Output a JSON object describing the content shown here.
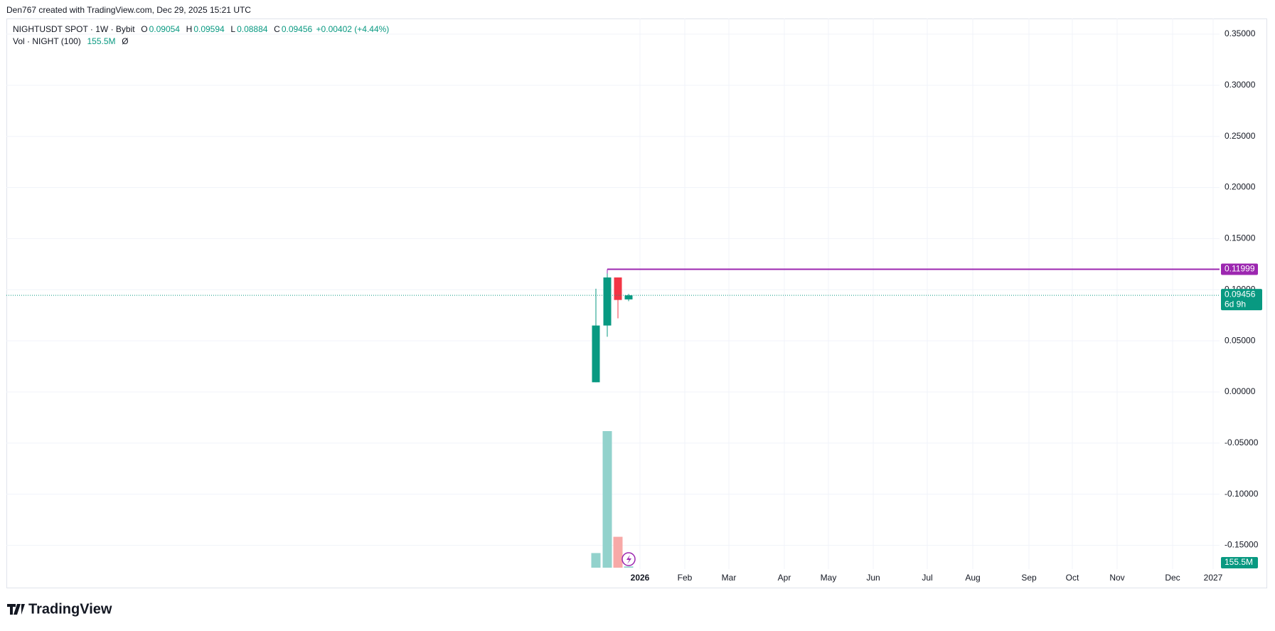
{
  "chart_data": {
    "type": "candlestick",
    "attribution": "Den767 created with TradingView.com, Dec 29, 2025 15:21 UTC",
    "symbol": "NIGHTUSDT SPOT · 1W · Bybit",
    "legend_labels": [
      "O",
      "H",
      "L",
      "C"
    ],
    "change_label": "+0.00402 (+4.44%)",
    "volume_legend": "Vol · NIGHT (100)",
    "volume_legend_suffix": "Ø",
    "countdown": "6d 9h",
    "brand": "TradingView",
    "open": [
      0.0095,
      0.065,
      0.112,
      0.09054
    ],
    "high": [
      0.101,
      0.11999,
      0.112,
      0.09594
    ],
    "low": [
      0.0095,
      0.054,
      0.072,
      0.08884
    ],
    "close": [
      0.065,
      0.112,
      0.09,
      0.09456
    ],
    "volume": [
      1800000000,
      16800000000,
      3800000000,
      155500000
    ],
    "volume_labels": [
      null,
      null,
      null,
      "155.5M"
    ],
    "up_color": "#089981",
    "down_color": "#f23645",
    "up_volume_color": "#92d2cc",
    "down_volume_color": "#f7a9a7",
    "high_line_color": "#9c27b0",
    "xticks": [
      "2026",
      "Feb",
      "Mar",
      "Apr",
      "May",
      "Jun",
      "Jul",
      "Aug",
      "Sep",
      "Oct",
      "Nov",
      "Dec",
      "2027"
    ],
    "ylim": [
      -0.16,
      0.365
    ],
    "yticks": [
      {
        "value": 0.35,
        "label": "0.35000"
      },
      {
        "value": 0.3,
        "label": "0.30000"
      },
      {
        "value": 0.25,
        "label": "0.25000"
      },
      {
        "value": 0.2,
        "label": "0.20000"
      },
      {
        "value": 0.15,
        "label": "0.15000"
      },
      {
        "value": 0.1,
        "label": "0.10000"
      },
      {
        "value": 0.05,
        "label": "0.05000"
      },
      {
        "value": 0,
        "label": "0.00000"
      },
      {
        "value": -0.05,
        "label": "-0.05000"
      },
      {
        "value": -0.1,
        "label": "-0.10000"
      },
      {
        "value": -0.15,
        "label": "-0.15000"
      }
    ],
    "grid": true
  }
}
